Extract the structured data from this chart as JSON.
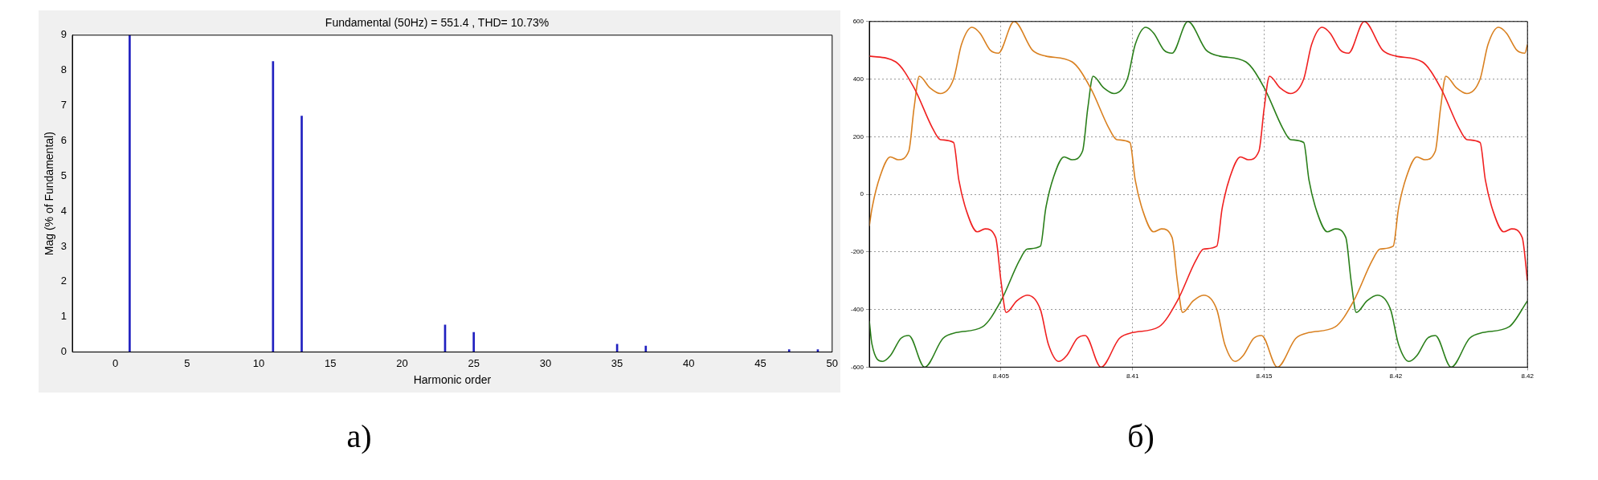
{
  "chart_data": [
    {
      "type": "bar",
      "title": "Fundamental (50Hz) = 551.4 , THD= 10.73%",
      "xlabel": "Harmonic order",
      "ylabel": "Mag (% of Fundamental)",
      "x": [
        1,
        11,
        13,
        23,
        25,
        35,
        37,
        47,
        49
      ],
      "values": [
        9,
        8.25,
        6.7,
        0.77,
        0.56,
        0.22,
        0.17,
        0.07,
        0.07
      ],
      "color": "#2020c0",
      "xlim": [
        -3,
        50
      ],
      "xticks": [
        0,
        5,
        10,
        15,
        20,
        25,
        30,
        35,
        40,
        45,
        50
      ],
      "ylim": [
        0,
        9
      ],
      "yticks": [
        0,
        1,
        2,
        3,
        4,
        5,
        6,
        7,
        8,
        9
      ],
      "grid": false,
      "legend": false,
      "annotations": [
        "а)"
      ]
    },
    {
      "type": "line",
      "marker": "none",
      "grid": true,
      "legend": false,
      "xlim": [
        8.4,
        8.425
      ],
      "xticks": [
        8.405,
        8.41,
        8.415,
        8.42,
        {
          "value": 8.425,
          "label": "8.42"
        }
      ],
      "ylim": [
        -600,
        600
      ],
      "yticks": [
        -600,
        -400,
        -200,
        0,
        200,
        400,
        600
      ],
      "annotations": [
        "б)"
      ],
      "series": [
        {
          "color": "#f02020",
          "x": [
            8.4,
            8.401,
            8.4017,
            8.4024,
            8.4027,
            8.4032,
            8.4034,
            8.4037,
            8.4041,
            8.4044,
            8.4048,
            8.405,
            8.4052,
            8.4056,
            8.406,
            8.4065,
            8.4068,
            8.4072,
            8.4075,
            8.4079,
            8.4082,
            8.4088,
            8.4095,
            8.41,
            8.411,
            8.4117,
            8.4124,
            8.4127,
            8.4132,
            8.4134,
            8.4137,
            8.4141,
            8.4144,
            8.4148,
            8.415,
            8.4152,
            8.4156,
            8.416,
            8.4165,
            8.4168,
            8.4172,
            8.4175,
            8.4179,
            8.4182,
            8.4188,
            8.4195,
            8.42,
            8.421,
            8.4217,
            8.4224,
            8.4227,
            8.4232,
            8.4234,
            8.4237,
            8.4241,
            8.4244,
            8.4248,
            8.425
          ],
          "values": [
            480,
            460,
            370,
            230,
            190,
            180,
            50,
            -60,
            -130,
            -120,
            -150,
            -300,
            -410,
            -370,
            -350,
            -400,
            -520,
            -580,
            -560,
            -500,
            -490,
            -600,
            -500,
            -480,
            -460,
            -370,
            -230,
            -190,
            -180,
            -50,
            60,
            130,
            120,
            150,
            300,
            410,
            370,
            350,
            400,
            520,
            580,
            560,
            500,
            490,
            600,
            500,
            480,
            460,
            370,
            230,
            190,
            180,
            50,
            -60,
            -130,
            -120,
            -150,
            -300
          ]
        },
        {
          "color": "#d98020",
          "x": [
            8.4,
            8.4001,
            8.4004,
            8.4008,
            8.4011,
            8.4015,
            8.4017,
            8.4019,
            8.4023,
            8.4027,
            8.4032,
            8.4035,
            8.4039,
            8.4042,
            8.4046,
            8.4049,
            8.4055,
            8.4062,
            8.4067,
            8.4077,
            8.4084,
            8.4091,
            8.4094,
            8.4099,
            8.4101,
            8.4104,
            8.4108,
            8.4111,
            8.4115,
            8.4117,
            8.4119,
            8.4123,
            8.4127,
            8.4132,
            8.4135,
            8.4139,
            8.4142,
            8.4146,
            8.4149,
            8.4155,
            8.4162,
            8.4167,
            8.4177,
            8.4184,
            8.4191,
            8.4194,
            8.4199,
            8.4201,
            8.4204,
            8.4208,
            8.4211,
            8.4215,
            8.4217,
            8.4219,
            8.4223,
            8.4227,
            8.4232,
            8.4235,
            8.4239,
            8.4242,
            8.4246,
            8.4249,
            8.425
          ],
          "values": [
            -110,
            -50,
            60,
            130,
            120,
            150,
            300,
            410,
            370,
            350,
            400,
            520,
            580,
            560,
            500,
            490,
            600,
            500,
            480,
            460,
            370,
            230,
            190,
            180,
            50,
            -60,
            -130,
            -120,
            -150,
            -300,
            -410,
            -370,
            -350,
            -400,
            -520,
            -580,
            -560,
            -500,
            -490,
            -600,
            -500,
            -480,
            -460,
            -370,
            -230,
            -190,
            -180,
            -50,
            60,
            130,
            120,
            150,
            300,
            410,
            370,
            350,
            400,
            520,
            580,
            560,
            500,
            490,
            520
          ]
        },
        {
          "color": "#2a7f1a",
          "x": [
            8.4,
            8.4001,
            8.4005,
            8.4008,
            8.4012,
            8.4015,
            8.4021,
            8.4028,
            8.4033,
            8.4043,
            8.405,
            8.4057,
            8.406,
            8.4065,
            8.4067,
            8.407,
            8.4074,
            8.4077,
            8.4081,
            8.4083,
            8.4085,
            8.4089,
            8.4093,
            8.4098,
            8.4101,
            8.4105,
            8.4108,
            8.4112,
            8.4115,
            8.4121,
            8.4128,
            8.4133,
            8.4143,
            8.415,
            8.4157,
            8.416,
            8.4165,
            8.4167,
            8.417,
            8.4174,
            8.4177,
            8.4181,
            8.4183,
            8.4185,
            8.4189,
            8.4193,
            8.4198,
            8.4201,
            8.4205,
            8.4208,
            8.4212,
            8.4215,
            8.4221,
            8.4228,
            8.4233,
            8.4243,
            8.425
          ],
          "values": [
            -440,
            -520,
            -580,
            -560,
            -500,
            -490,
            -600,
            -500,
            -480,
            -460,
            -370,
            -230,
            -190,
            -180,
            -50,
            60,
            130,
            120,
            150,
            300,
            410,
            370,
            350,
            400,
            520,
            580,
            560,
            500,
            490,
            600,
            500,
            480,
            460,
            370,
            230,
            190,
            180,
            50,
            -60,
            -130,
            -120,
            -150,
            -300,
            -410,
            -370,
            -350,
            -400,
            -520,
            -580,
            -560,
            -500,
            -490,
            -600,
            -500,
            -480,
            -460,
            -370
          ]
        }
      ]
    }
  ]
}
